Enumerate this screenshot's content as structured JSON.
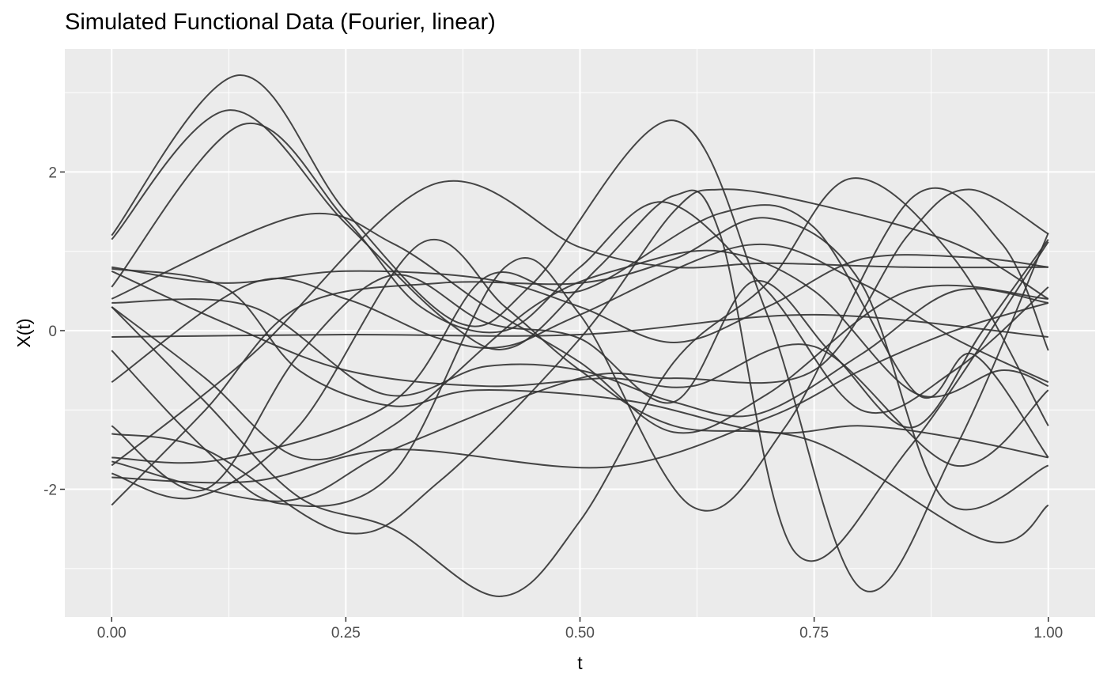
{
  "chart_data": {
    "type": "line",
    "title": "Simulated Functional Data (Fourier, linear)",
    "xlabel": "t",
    "ylabel": "X(t)",
    "xlim": [
      -0.05,
      1.05
    ],
    "ylim": [
      -3.61,
      3.55
    ],
    "x_ticks": [
      0,
      0.25,
      0.5,
      0.75,
      1
    ],
    "x_tick_labels": [
      "0.00",
      "0.25",
      "0.50",
      "0.75",
      "1.00"
    ],
    "y_ticks": [
      -2,
      0,
      2
    ],
    "y_tick_labels": [
      "-2",
      "0",
      "2"
    ],
    "grid": true,
    "legend": "none",
    "colors": {
      "panel": "#EBEBEB",
      "grid": "#FFFFFF",
      "line": "#333333",
      "tick": "#4D4D4D"
    },
    "series": [
      {
        "points": [
          [
            0,
            1.2
          ],
          [
            0.135,
            3.22
          ],
          [
            0.25,
            1.5
          ],
          [
            0.37,
            0.1
          ],
          [
            0.45,
            0.6
          ],
          [
            0.6,
            2.65
          ],
          [
            0.7,
            0.2
          ],
          [
            0.8,
            -3.25
          ],
          [
            0.9,
            -1.5
          ],
          [
            1,
            1.23
          ]
        ]
      },
      {
        "points": [
          [
            0,
            1.15
          ],
          [
            0.125,
            2.78
          ],
          [
            0.25,
            1.35
          ],
          [
            0.36,
            0.1
          ],
          [
            0.43,
            -0.2
          ],
          [
            0.52,
            0.8
          ],
          [
            0.6,
            1.7
          ],
          [
            0.65,
            1.2
          ],
          [
            0.73,
            -2.8
          ],
          [
            0.85,
            -1.5
          ],
          [
            1,
            1.12
          ]
        ]
      },
      {
        "points": [
          [
            0,
            0.55
          ],
          [
            0.14,
            2.6
          ],
          [
            0.25,
            1.4
          ],
          [
            0.33,
            0.3
          ],
          [
            0.42,
            0.0
          ],
          [
            0.5,
            0.8
          ],
          [
            0.59,
            1.62
          ],
          [
            0.7,
            0.5
          ],
          [
            0.8,
            -1.0
          ],
          [
            0.9,
            -0.5
          ],
          [
            1,
            0.55
          ]
        ]
      },
      {
        "points": [
          [
            0,
            0.4
          ],
          [
            0.2,
            1.45
          ],
          [
            0.3,
            1.1
          ],
          [
            0.4,
            0.3
          ],
          [
            0.5,
            -0.4
          ],
          [
            0.6,
            -1.28
          ],
          [
            0.7,
            -0.8
          ],
          [
            0.85,
            0.5
          ],
          [
            1,
            0.4
          ]
        ]
      },
      {
        "points": [
          [
            0,
            -1.7
          ],
          [
            0.15,
            -0.3
          ],
          [
            0.345,
            1.85
          ],
          [
            0.5,
            1.05
          ],
          [
            0.6,
            0.8
          ],
          [
            0.7,
            0.85
          ],
          [
            0.85,
            0.8
          ],
          [
            1,
            0.8
          ]
        ]
      },
      {
        "points": [
          [
            0,
            -1.3
          ],
          [
            0.1,
            -1.5
          ],
          [
            0.25,
            -2.55
          ],
          [
            0.35,
            -1.9
          ],
          [
            0.5,
            -0.1
          ],
          [
            0.6,
            1.5
          ],
          [
            0.65,
            1.78
          ],
          [
            0.75,
            1.6
          ],
          [
            0.9,
            1.1
          ],
          [
            1,
            0.4
          ]
        ]
      },
      {
        "points": [
          [
            0,
            0.3
          ],
          [
            0.1,
            -0.9
          ],
          [
            0.2,
            -2.1
          ],
          [
            0.3,
            -2.5
          ],
          [
            0.415,
            -3.35
          ],
          [
            0.5,
            -2.4
          ],
          [
            0.6,
            -0.4
          ],
          [
            0.7,
            0.6
          ],
          [
            0.79,
            1.92
          ],
          [
            0.9,
            0.9
          ],
          [
            1,
            -1.2
          ]
        ]
      },
      {
        "points": [
          [
            0,
            -0.25
          ],
          [
            0.1,
            -1.5
          ],
          [
            0.18,
            -2.18
          ],
          [
            0.3,
            -1.8
          ],
          [
            0.42,
            0.8
          ],
          [
            0.5,
            0.2
          ],
          [
            0.62,
            -2.22
          ],
          [
            0.72,
            -1.2
          ],
          [
            0.855,
            1.68
          ],
          [
            0.95,
            1.1
          ],
          [
            1,
            -0.25
          ]
        ]
      },
      {
        "points": [
          [
            0,
            -1.8
          ],
          [
            0.09,
            -2.1
          ],
          [
            0.2,
            -1.2
          ],
          [
            0.33,
            1.1
          ],
          [
            0.42,
            0.3
          ],
          [
            0.5,
            -0.5
          ],
          [
            0.6,
            -1.2
          ],
          [
            0.75,
            -1.4
          ],
          [
            0.935,
            -2.65
          ],
          [
            1,
            -2.2
          ]
        ]
      },
      {
        "points": [
          [
            0,
            -0.08
          ],
          [
            0.25,
            -0.05
          ],
          [
            0.5,
            -0.05
          ],
          [
            0.75,
            0.2
          ],
          [
            1,
            -0.08
          ]
        ]
      },
      {
        "points": [
          [
            0,
            0.8
          ],
          [
            0.12,
            0.6
          ],
          [
            0.25,
            0.75
          ],
          [
            0.4,
            0.65
          ],
          [
            0.5,
            0.3
          ],
          [
            0.6,
            -0.15
          ],
          [
            0.7,
            0.3
          ],
          [
            0.8,
            0.9
          ],
          [
            0.92,
            0.92
          ],
          [
            1,
            0.8
          ]
        ]
      },
      {
        "points": [
          [
            0,
            0.35
          ],
          [
            0.15,
            0.3
          ],
          [
            0.29,
            -0.8
          ],
          [
            0.4,
            -0.45
          ],
          [
            0.5,
            -0.5
          ],
          [
            0.6,
            -0.9
          ],
          [
            0.69,
            -1.05
          ],
          [
            0.8,
            -0.3
          ],
          [
            0.9,
            0.5
          ],
          [
            1,
            0.35
          ]
        ]
      },
      {
        "points": [
          [
            0,
            -1.6
          ],
          [
            0.12,
            -1.62
          ],
          [
            0.3,
            -0.9
          ],
          [
            0.4,
            0.68
          ],
          [
            0.5,
            0.5
          ],
          [
            0.65,
            1.48
          ],
          [
            0.75,
            1.3
          ],
          [
            0.86,
            -0.8
          ],
          [
            0.92,
            -0.3
          ],
          [
            1,
            -1.6
          ]
        ]
      },
      {
        "points": [
          [
            0,
            -1.85
          ],
          [
            0.15,
            -1.9
          ],
          [
            0.3,
            -1.5
          ],
          [
            0.53,
            -1.72
          ],
          [
            0.7,
            -1.1
          ],
          [
            0.8,
            -0.5
          ],
          [
            0.9,
            0.0
          ],
          [
            1,
            0.35
          ]
        ]
      },
      {
        "points": [
          [
            0,
            0.78
          ],
          [
            0.12,
            0.55
          ],
          [
            0.2,
            -0.5
          ],
          [
            0.3,
            -0.95
          ],
          [
            0.39,
            -0.75
          ],
          [
            0.55,
            -0.88
          ],
          [
            0.7,
            -1.28
          ],
          [
            0.8,
            -1.2
          ],
          [
            0.9,
            -1.35
          ],
          [
            1,
            -1.6
          ]
        ]
      },
      {
        "points": [
          [
            0,
            -0.65
          ],
          [
            0.15,
            0.6
          ],
          [
            0.25,
            0.4
          ],
          [
            0.35,
            -0.1
          ],
          [
            0.42,
            -0.2
          ],
          [
            0.5,
            0.2
          ],
          [
            0.68,
            1.08
          ],
          [
            0.8,
            0.6
          ],
          [
            0.9,
            -0.1
          ],
          [
            1,
            -0.65
          ]
        ]
      },
      {
        "points": [
          [
            0,
            -1.2
          ],
          [
            0.1,
            -2.0
          ],
          [
            0.2,
            -0.3
          ],
          [
            0.3,
            0.7
          ],
          [
            0.4,
            0.1
          ],
          [
            0.5,
            -0.1
          ],
          [
            0.6,
            -0.9
          ],
          [
            0.685,
            0.62
          ],
          [
            0.77,
            -0.3
          ],
          [
            0.855,
            -1.22
          ],
          [
            0.93,
            0.0
          ],
          [
            1,
            1.15
          ]
        ]
      },
      {
        "points": [
          [
            0,
            -2.2
          ],
          [
            0.1,
            -1.0
          ],
          [
            0.2,
            0.3
          ],
          [
            0.35,
            0.6
          ],
          [
            0.5,
            0.6
          ],
          [
            0.6,
            0.9
          ],
          [
            0.7,
            1.42
          ],
          [
            0.8,
            0.6
          ],
          [
            0.89,
            -2.15
          ],
          [
            1,
            -1.7
          ]
        ]
      },
      {
        "points": [
          [
            0,
            0.75
          ],
          [
            0.12,
            0.1
          ],
          [
            0.25,
            -0.5
          ],
          [
            0.4,
            -0.7
          ],
          [
            0.53,
            -0.6
          ],
          [
            0.62,
            -0.7
          ],
          [
            0.75,
            -0.2
          ],
          [
            0.9,
            -1.7
          ],
          [
            1,
            -0.75
          ]
        ]
      },
      {
        "points": [
          [
            0,
            -1.65
          ],
          [
            0.18,
            -2.15
          ],
          [
            0.3,
            -1.5
          ],
          [
            0.5,
            -0.6
          ],
          [
            0.6,
            -0.6
          ],
          [
            0.75,
            -0.5
          ],
          [
            0.85,
            1.2
          ],
          [
            0.915,
            1.78
          ],
          [
            1,
            1.22
          ]
        ]
      },
      {
        "points": [
          [
            0,
            0.3
          ],
          [
            0.1,
            -0.6
          ],
          [
            0.2,
            -1.6
          ],
          [
            0.3,
            -1.2
          ],
          [
            0.45,
            0.3
          ],
          [
            0.55,
            0.8
          ],
          [
            0.65,
            1.0
          ],
          [
            0.75,
            0.5
          ],
          [
            0.86,
            -0.8
          ],
          [
            0.95,
            -0.5
          ],
          [
            1,
            -0.7
          ]
        ]
      }
    ]
  }
}
